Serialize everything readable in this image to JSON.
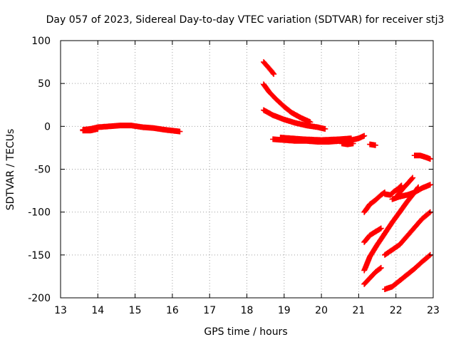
{
  "chart_data": {
    "type": "scatter",
    "title": "Day 057 of 2023, Sidereal Day-to-day VTEC variation (SDTVAR) for receiver stj3",
    "xlabel": "GPS time / hours",
    "ylabel": "SDTVAR / TECUs",
    "xlim": [
      13,
      23
    ],
    "ylim": [
      -200,
      100
    ],
    "xticks": [
      13,
      14,
      15,
      16,
      17,
      18,
      19,
      20,
      21,
      22,
      23
    ],
    "yticks": [
      -200,
      -150,
      -100,
      -50,
      0,
      50,
      100
    ],
    "xtick_labels": [
      "13",
      "14",
      "15",
      "16",
      "17",
      "18",
      "19",
      "20",
      "21",
      "22",
      "23"
    ],
    "ytick_labels": [
      "-200",
      "-150",
      "-100",
      "-50",
      "0",
      "50",
      "100"
    ],
    "grid": true,
    "marker": "plus",
    "series_color": "#ff0000",
    "series": [
      {
        "points": [
          [
            13.6,
            -4
          ],
          [
            13.8,
            -3
          ],
          [
            14.0,
            -1
          ],
          [
            14.3,
            0
          ],
          [
            14.6,
            1
          ],
          [
            14.9,
            1
          ],
          [
            15.2,
            -1
          ],
          [
            15.5,
            -2
          ],
          [
            15.8,
            -4
          ],
          [
            16.0,
            -5
          ],
          [
            16.2,
            -6
          ]
        ]
      },
      {
        "points": [
          [
            13.6,
            -5
          ],
          [
            13.8,
            -5
          ],
          [
            14.0,
            -3
          ]
        ]
      },
      {
        "points": [
          [
            18.45,
            75
          ],
          [
            18.55,
            70
          ],
          [
            18.65,
            65
          ],
          [
            18.72,
            61
          ]
        ]
      },
      {
        "points": [
          [
            18.45,
            49
          ],
          [
            18.6,
            40
          ],
          [
            18.8,
            31
          ],
          [
            19.0,
            23
          ],
          [
            19.2,
            16
          ],
          [
            19.45,
            10
          ],
          [
            19.7,
            5
          ]
        ]
      },
      {
        "points": [
          [
            18.45,
            19
          ],
          [
            18.7,
            13
          ],
          [
            19.0,
            8
          ],
          [
            19.3,
            4
          ],
          [
            19.6,
            1
          ],
          [
            19.9,
            -1
          ],
          [
            20.1,
            -3
          ]
        ]
      },
      {
        "points": [
          [
            18.7,
            -15
          ],
          [
            19.0,
            -16
          ],
          [
            19.3,
            -17
          ],
          [
            19.6,
            -17
          ],
          [
            19.9,
            -18
          ],
          [
            20.2,
            -18
          ],
          [
            20.5,
            -17
          ],
          [
            20.8,
            -16
          ],
          [
            21.0,
            -14
          ],
          [
            21.15,
            -11
          ]
        ]
      },
      {
        "points": [
          [
            18.9,
            -13
          ],
          [
            19.2,
            -14
          ],
          [
            19.5,
            -15
          ],
          [
            20.0,
            -16
          ],
          [
            20.5,
            -15
          ],
          [
            20.8,
            -14
          ]
        ]
      },
      {
        "points": [
          [
            20.55,
            -20
          ],
          [
            20.7,
            -21
          ],
          [
            20.85,
            -20
          ]
        ]
      },
      {
        "points": [
          [
            21.3,
            -21
          ],
          [
            21.45,
            -22
          ]
        ]
      },
      {
        "points": [
          [
            22.5,
            -34
          ],
          [
            22.65,
            -34
          ],
          [
            22.8,
            -36
          ],
          [
            22.92,
            -38
          ]
        ]
      },
      {
        "points": [
          [
            21.15,
            -100
          ],
          [
            21.3,
            -91
          ],
          [
            21.45,
            -86
          ],
          [
            21.6,
            -80
          ],
          [
            21.7,
            -77
          ]
        ]
      },
      {
        "points": [
          [
            21.7,
            -79
          ],
          [
            21.85,
            -80
          ],
          [
            21.95,
            -76
          ],
          [
            22.05,
            -73
          ],
          [
            22.15,
            -69
          ]
        ]
      },
      {
        "points": [
          [
            21.9,
            -85
          ],
          [
            22.1,
            -82
          ],
          [
            22.3,
            -80
          ],
          [
            22.5,
            -77
          ],
          [
            22.7,
            -72
          ],
          [
            22.92,
            -68
          ]
        ]
      },
      {
        "points": [
          [
            22.05,
            -80
          ],
          [
            22.2,
            -72
          ],
          [
            22.35,
            -65
          ],
          [
            22.45,
            -60
          ]
        ]
      },
      {
        "points": [
          [
            21.15,
            -135
          ],
          [
            21.3,
            -127
          ],
          [
            21.45,
            -123
          ],
          [
            21.6,
            -119
          ]
        ]
      },
      {
        "points": [
          [
            21.15,
            -168
          ],
          [
            21.3,
            -152
          ],
          [
            21.5,
            -138
          ],
          [
            21.7,
            -125
          ],
          [
            21.9,
            -112
          ],
          [
            22.1,
            -100
          ],
          [
            22.3,
            -88
          ],
          [
            22.5,
            -77
          ],
          [
            22.6,
            -71
          ]
        ]
      },
      {
        "points": [
          [
            21.15,
            -184
          ],
          [
            21.3,
            -177
          ],
          [
            21.45,
            -170
          ],
          [
            21.6,
            -165
          ]
        ]
      },
      {
        "points": [
          [
            21.7,
            -150
          ],
          [
            21.9,
            -144
          ],
          [
            22.1,
            -138
          ],
          [
            22.3,
            -128
          ],
          [
            22.5,
            -118
          ],
          [
            22.7,
            -108
          ],
          [
            22.92,
            -100
          ]
        ]
      },
      {
        "points": [
          [
            21.7,
            -190
          ],
          [
            21.9,
            -187
          ],
          [
            22.1,
            -180
          ],
          [
            22.3,
            -173
          ],
          [
            22.5,
            -166
          ],
          [
            22.7,
            -158
          ],
          [
            22.92,
            -150
          ]
        ]
      }
    ]
  }
}
